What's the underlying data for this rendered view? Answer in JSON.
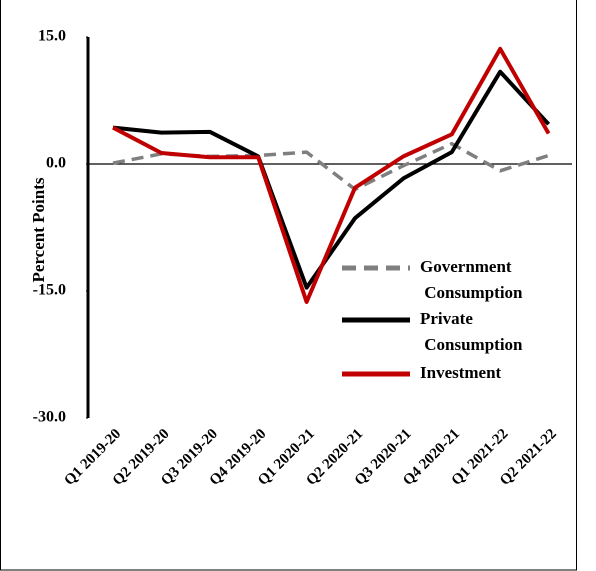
{
  "chart_data": {
    "type": "line",
    "y_label": "Percent Points",
    "categories": [
      "Q1 2019-20",
      "Q2 2019-20",
      "Q3 2019-20",
      "Q4 2019-20",
      "Q1 2020-21",
      "Q2 2020-21",
      "Q3 2020-21",
      "Q4 2020-21",
      "Q1 2021-22",
      "Q2 2021-22"
    ],
    "series": [
      {
        "name": "Government Consumption",
        "color": "#7f7f7f",
        "dashed": true,
        "values": [
          0.1,
          1.2,
          0.9,
          1.0,
          1.4,
          -3.0,
          -0.2,
          2.4,
          -0.8,
          1.0
        ]
      },
      {
        "name": "Private Consumption",
        "color": "#000000",
        "dashed": false,
        "values": [
          4.3,
          3.7,
          3.8,
          0.9,
          -14.6,
          -6.4,
          -1.7,
          1.4,
          10.9,
          4.7
        ]
      },
      {
        "name": "Investment",
        "color": "#c00000",
        "dashed": false,
        "values": [
          4.3,
          1.3,
          0.8,
          0.8,
          -16.3,
          -2.8,
          0.9,
          3.5,
          13.6,
          3.6
        ]
      }
    ],
    "ylim": [
      -30,
      15
    ],
    "yticks": [
      {
        "value": -30,
        "label": "-30.0"
      },
      {
        "value": -15,
        "label": "-15.0"
      },
      {
        "value": 0,
        "label": "0.0"
      },
      {
        "value": 15,
        "label": "15.0"
      }
    ]
  }
}
